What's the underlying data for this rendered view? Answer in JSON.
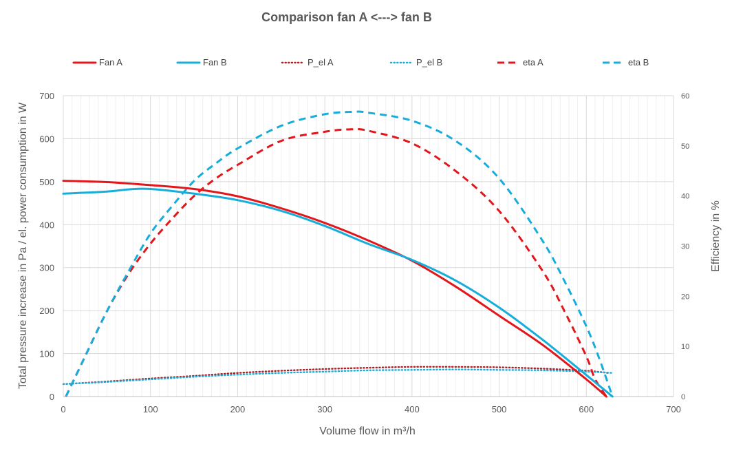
{
  "chart_data": {
    "type": "line",
    "title": "Comparison fan A <---> fan B",
    "xlabel": "Volume flow in m³/h",
    "ylabel": "Total pressure increase in Pa / el. power consumption in W",
    "y2label": "Efficiency in %",
    "xlim": [
      0,
      700
    ],
    "ylim": [
      0,
      700
    ],
    "y2lim": [
      0,
      60
    ],
    "x_ticks": [
      "0",
      "100",
      "200",
      "300",
      "400",
      "500",
      "600",
      "700"
    ],
    "y_ticks": [
      "0",
      "100",
      "200",
      "300",
      "400",
      "500",
      "600",
      "700"
    ],
    "y2_ticks": [
      "0",
      "10",
      "20",
      "30",
      "40",
      "50",
      "60"
    ],
    "grid": true,
    "legend_position": "top",
    "series": [
      {
        "name": "Fan A",
        "axis": "left",
        "color": "#E3171B",
        "style": "solid",
        "x": [
          0,
          50,
          100,
          150,
          200,
          250,
          300,
          350,
          400,
          450,
          500,
          550,
          600,
          623
        ],
        "y": [
          502,
          499,
          492,
          483,
          466,
          438,
          404,
          363,
          316,
          256,
          188,
          120,
          40,
          0
        ]
      },
      {
        "name": "Fan B",
        "axis": "left",
        "color": "#17ADDB",
        "style": "solid",
        "x": [
          0,
          50,
          75,
          100,
          150,
          200,
          250,
          300,
          350,
          400,
          450,
          500,
          550,
          600,
          630
        ],
        "y": [
          472,
          477,
          482,
          483,
          472,
          457,
          432,
          397,
          355,
          318,
          270,
          207,
          132,
          50,
          0
        ]
      },
      {
        "name": "P_el A",
        "axis": "left",
        "color": "#B01C20",
        "style": "dotted",
        "x": [
          0,
          50,
          100,
          150,
          200,
          250,
          300,
          350,
          400,
          450,
          500,
          550,
          600,
          625
        ],
        "y": [
          29,
          35,
          42,
          48,
          55,
          60,
          64,
          67,
          69,
          69,
          68,
          65,
          60,
          55
        ]
      },
      {
        "name": "P_el B",
        "axis": "left",
        "color": "#17ADDB",
        "style": "dotted",
        "x": [
          0,
          50,
          100,
          150,
          200,
          250,
          300,
          350,
          400,
          450,
          500,
          550,
          600,
          630
        ],
        "y": [
          29,
          34,
          40,
          46,
          51,
          55,
          58,
          61,
          62,
          63,
          62,
          61,
          58,
          55
        ]
      },
      {
        "name": "eta A",
        "axis": "right",
        "color": "#E3171B",
        "style": "dashed",
        "x": [
          3,
          25,
          50,
          75,
          100,
          125,
          150,
          175,
          200,
          250,
          300,
          330,
          350,
          400,
          450,
          500,
          550,
          575,
          600,
          610,
          623
        ],
        "y": [
          0,
          8,
          17,
          24.5,
          30.5,
          35.5,
          40,
          43.5,
          46.2,
          51,
          52.8,
          53.3,
          53,
          50.5,
          45,
          37,
          25,
          17,
          8,
          3.5,
          0
        ]
      },
      {
        "name": "eta B",
        "axis": "right",
        "color": "#17ADDB",
        "style": "dashed",
        "x": [
          3,
          25,
          50,
          75,
          100,
          125,
          150,
          175,
          200,
          250,
          300,
          335,
          350,
          400,
          450,
          500,
          550,
          575,
          600,
          615,
          630
        ],
        "y": [
          0,
          8,
          17,
          25,
          32.5,
          38,
          43,
          46.5,
          49.5,
          54,
          56.3,
          56.8,
          56.6,
          55,
          51,
          43.5,
          31,
          23,
          14,
          7.5,
          0
        ]
      }
    ]
  }
}
